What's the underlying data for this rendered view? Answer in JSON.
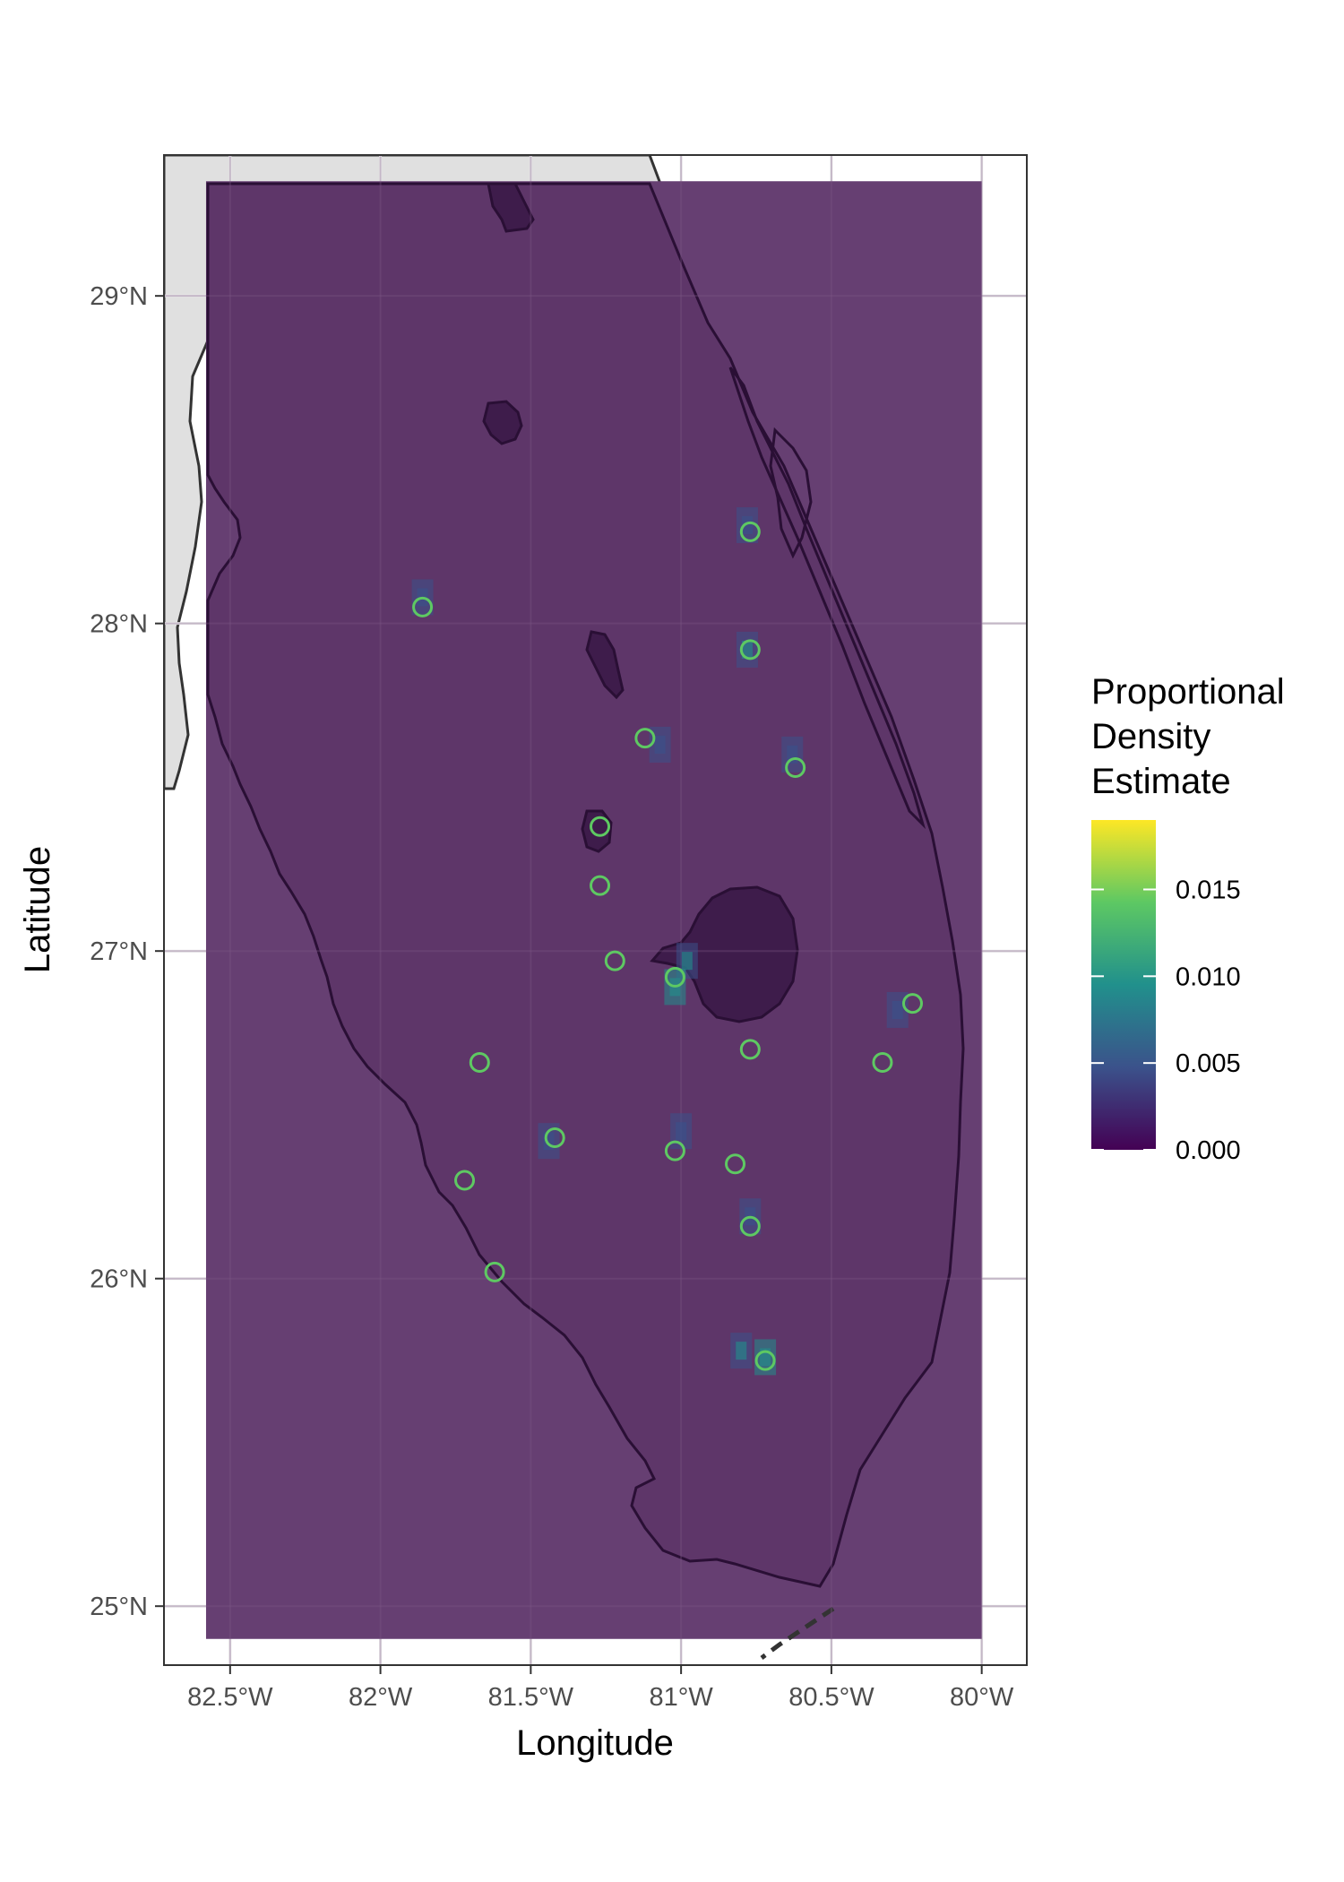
{
  "chart_data": {
    "type": "map",
    "xlabel": "Longitude",
    "ylabel": "Latitude",
    "xlim": [
      -82.72,
      -79.85
    ],
    "ylim": [
      24.82,
      29.43
    ],
    "x_ticks": [
      {
        "value": -82.5,
        "label": "82.5°W"
      },
      {
        "value": -82.0,
        "label": "82°W"
      },
      {
        "value": -81.5,
        "label": "81.5°W"
      },
      {
        "value": -81.0,
        "label": "81°W"
      },
      {
        "value": -80.5,
        "label": "80.5°W"
      },
      {
        "value": -80.0,
        "label": "80°W"
      }
    ],
    "y_ticks": [
      {
        "value": 25,
        "label": "25°N"
      },
      {
        "value": 26,
        "label": "26°N"
      },
      {
        "value": 27,
        "label": "27°N"
      },
      {
        "value": 28,
        "label": "28°N"
      },
      {
        "value": 29,
        "label": "29°N"
      }
    ],
    "grid": true,
    "study_extent": {
      "lon": [
        -82.58,
        -80.0
      ],
      "lat": [
        24.9,
        29.35
      ]
    },
    "legend": {
      "title": [
        "Proportional",
        "Density",
        "Estimate"
      ],
      "placement": "right",
      "range": [
        0,
        0.019
      ],
      "ticks": [
        {
          "value": 0.0,
          "label": "0.000"
        },
        {
          "value": 0.005,
          "label": "0.005"
        },
        {
          "value": 0.01,
          "label": "0.010"
        },
        {
          "value": 0.015,
          "label": "0.015"
        }
      ],
      "colors": [
        "#440154",
        "#3b528b",
        "#21908c",
        "#5dc863",
        "#fde725"
      ]
    },
    "points": [
      {
        "lon": -81.86,
        "lat": 28.05
      },
      {
        "lon": -80.77,
        "lat": 28.28
      },
      {
        "lon": -80.77,
        "lat": 27.92
      },
      {
        "lon": -81.12,
        "lat": 27.65
      },
      {
        "lon": -80.62,
        "lat": 27.56
      },
      {
        "lon": -81.27,
        "lat": 27.38
      },
      {
        "lon": -81.27,
        "lat": 27.2
      },
      {
        "lon": -81.22,
        "lat": 26.97
      },
      {
        "lon": -81.02,
        "lat": 26.92
      },
      {
        "lon": -80.23,
        "lat": 26.84
      },
      {
        "lon": -80.77,
        "lat": 26.7
      },
      {
        "lon": -81.67,
        "lat": 26.66
      },
      {
        "lon": -80.33,
        "lat": 26.66
      },
      {
        "lon": -81.42,
        "lat": 26.43
      },
      {
        "lon": -81.02,
        "lat": 26.39
      },
      {
        "lon": -80.82,
        "lat": 26.35
      },
      {
        "lon": -81.72,
        "lat": 26.3
      },
      {
        "lon": -80.77,
        "lat": 26.16
      },
      {
        "lon": -81.62,
        "lat": 26.02
      },
      {
        "lon": -80.72,
        "lat": 25.75
      }
    ],
    "hotspots": [
      {
        "lon": -80.78,
        "lat": 28.3,
        "value": 0.004
      },
      {
        "lon": -80.78,
        "lat": 27.92,
        "value": 0.006
      },
      {
        "lon": -80.63,
        "lat": 27.6,
        "value": 0.005
      },
      {
        "lon": -81.86,
        "lat": 28.08,
        "value": 0.004
      },
      {
        "lon": -80.98,
        "lat": 26.97,
        "value": 0.006
      },
      {
        "lon": -81.02,
        "lat": 26.89,
        "value": 0.008
      },
      {
        "lon": -80.28,
        "lat": 26.82,
        "value": 0.004
      },
      {
        "lon": -81.0,
        "lat": 26.45,
        "value": 0.004
      },
      {
        "lon": -81.44,
        "lat": 26.42,
        "value": 0.004
      },
      {
        "lon": -80.77,
        "lat": 26.19,
        "value": 0.004
      },
      {
        "lon": -80.72,
        "lat": 25.76,
        "value": 0.009
      },
      {
        "lon": -80.8,
        "lat": 25.78,
        "value": 0.006
      },
      {
        "lon": -81.07,
        "lat": 27.63,
        "value": 0.003
      }
    ]
  }
}
